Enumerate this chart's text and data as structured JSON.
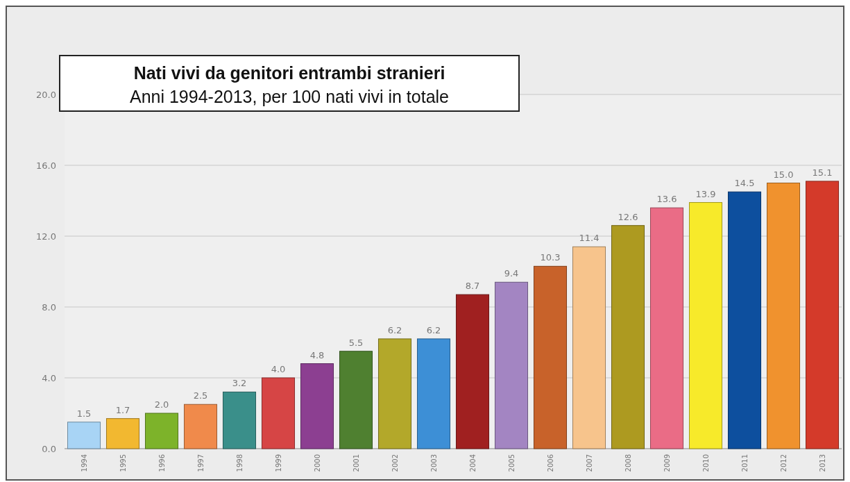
{
  "chart_data": {
    "type": "bar",
    "title": "Nati vivi da genitori entrambi stranieri",
    "subtitle": "Anni 1994-2013, per 100 nati vivi in totale",
    "categories": [
      "1994",
      "1995",
      "1996",
      "1997",
      "1998",
      "1999",
      "2000",
      "2001",
      "2002",
      "2003",
      "2004",
      "2005",
      "2006",
      "2007",
      "2008",
      "2009",
      "2010",
      "2011",
      "2012",
      "2013"
    ],
    "values": [
      1.5,
      1.7,
      2.0,
      2.5,
      3.2,
      4.0,
      4.8,
      5.5,
      6.2,
      6.2,
      8.7,
      9.4,
      10.3,
      11.4,
      12.6,
      13.6,
      13.9,
      14.5,
      15.0,
      15.1
    ],
    "value_labels": [
      "1.5",
      "1.7",
      "2.0",
      "2.5",
      "3.2",
      "4.0",
      "4.8",
      "5.5",
      "6.2",
      "6.2",
      "8.7",
      "9.4",
      "10.3",
      "11.4",
      "12.6",
      "13.6",
      "13.9",
      "14.5",
      "15.0",
      "15.1"
    ],
    "colors": [
      "#a8d4f5",
      "#f2b830",
      "#7db32a",
      "#f08a4b",
      "#3a8f8a",
      "#d64545",
      "#8c3f91",
      "#4f8030",
      "#b3a82a",
      "#3d8fd6",
      "#a02020",
      "#a385c2",
      "#c8622a",
      "#f7c48c",
      "#ad9a20",
      "#ea6c86",
      "#f7ea2a",
      "#0d4f9e",
      "#f0922e",
      "#d43a2a"
    ],
    "ylim": [
      0,
      20
    ],
    "yticks": [
      {
        "value": 0,
        "label": "0.0"
      },
      {
        "value": 4,
        "label": "4.0"
      },
      {
        "value": 8,
        "label": "8.0"
      },
      {
        "value": 12,
        "label": "12.0"
      },
      {
        "value": 16,
        "label": "16.0"
      },
      {
        "value": 20,
        "label": "20.0"
      }
    ],
    "grid": "y"
  }
}
